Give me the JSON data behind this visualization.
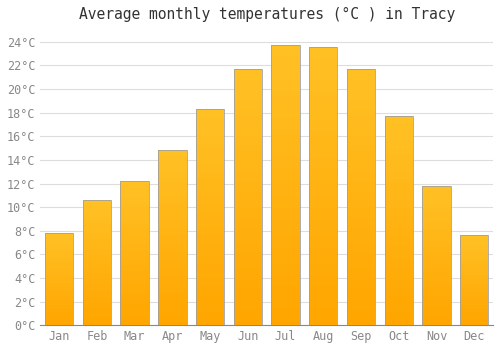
{
  "title": "Average monthly temperatures (°C ) in Tracy",
  "months": [
    "Jan",
    "Feb",
    "Mar",
    "Apr",
    "May",
    "Jun",
    "Jul",
    "Aug",
    "Sep",
    "Oct",
    "Nov",
    "Dec"
  ],
  "values": [
    7.8,
    10.6,
    12.2,
    14.8,
    18.3,
    21.7,
    23.7,
    23.6,
    21.7,
    17.7,
    11.8,
    7.6
  ],
  "bar_color_top": "#FFC125",
  "bar_color_bottom": "#FFA500",
  "bar_edge_color": "#A0A0A0",
  "background_color": "#FFFFFF",
  "plot_bg_color": "#FFFFFF",
  "grid_color": "#DDDDDD",
  "tick_color": "#888888",
  "title_color": "#333333",
  "ylim": [
    0,
    25
  ],
  "yticks": [
    0,
    2,
    4,
    6,
    8,
    10,
    12,
    14,
    16,
    18,
    20,
    22,
    24
  ],
  "title_fontsize": 10.5,
  "tick_fontsize": 8.5,
  "bar_width": 0.75,
  "figsize": [
    5.0,
    3.5
  ],
  "dpi": 100
}
